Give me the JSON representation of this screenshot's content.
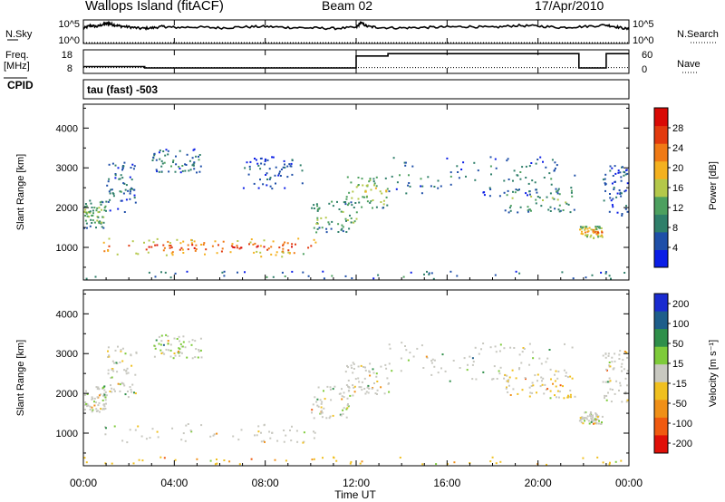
{
  "header": {
    "station": "Wallops Island (fitACF)",
    "beam": "Beam 02",
    "date": "17/Apr/2010",
    "mode": "tau (fast) -503"
  },
  "time_axis": {
    "label": "Time UT",
    "ticks": [
      "00:00",
      "04:00",
      "08:00",
      "12:00",
      "16:00",
      "20:00",
      "00:00"
    ],
    "range_hours": [
      0,
      24
    ]
  },
  "chart_data": [
    {
      "type": "line",
      "name": "noise",
      "left_label": "N.Sky",
      "right_label": "N.Search",
      "y_ticks": [
        "10^5",
        "10^0"
      ],
      "y_log_range": [
        0,
        5
      ],
      "series": [
        {
          "name": "N.Sky",
          "style": "solid",
          "x": [
            0,
            0.3,
            0.6,
            0.9,
            1.1,
            1.3,
            1.6,
            2.0,
            2.5,
            3.0,
            3.5,
            4.0,
            5.0,
            6.0,
            7.0,
            8.0,
            9.0,
            10.0,
            11.0,
            12.0,
            12.2,
            12.5,
            13.0,
            14.0,
            15.0,
            16.0,
            17.0,
            18.0,
            19.0,
            20.0,
            21.0,
            22.0,
            23.0,
            23.5,
            24.0
          ],
          "y": [
            3.2,
            3.8,
            3.6,
            4.1,
            4.3,
            4.0,
            3.7,
            3.5,
            3.2,
            3.3,
            3.6,
            3.4,
            3.5,
            3.3,
            3.5,
            3.6,
            3.4,
            3.3,
            3.2,
            3.4,
            4.4,
            3.6,
            3.4,
            3.3,
            3.4,
            3.5,
            3.6,
            3.4,
            3.8,
            3.7,
            3.4,
            3.6,
            3.9,
            3.5,
            3.0
          ]
        },
        {
          "name": "N.Search",
          "style": "dotted",
          "x": [
            0,
            24
          ],
          "y": [
            0.2,
            0.2
          ]
        }
      ]
    },
    {
      "type": "line",
      "name": "frequency",
      "left_label": "Freq.",
      "left_unit": "[MHz]",
      "left_ticks": [
        "18",
        "8"
      ],
      "left_range": [
        8,
        18
      ],
      "right_label": "Nave",
      "right_ticks": [
        "60",
        "0"
      ],
      "right_range": [
        0,
        60
      ],
      "series": [
        {
          "name": "Freq.",
          "style": "solid",
          "step": true,
          "x": [
            0,
            2.7,
            2.7,
            12.0,
            12.0,
            13.4,
            13.4,
            21.8,
            21.8,
            23.0,
            23.0,
            24.0
          ],
          "y": [
            10.5,
            10.5,
            9.8,
            9.8,
            15.8,
            15.8,
            17.0,
            17.0,
            9.8,
            9.8,
            17.0,
            17.0
          ]
        },
        {
          "name": "Nave",
          "style": "dotted",
          "x": [
            0,
            24
          ],
          "y": [
            12,
            12
          ]
        }
      ]
    },
    {
      "type": "heatmap",
      "name": "power",
      "ylabel": "Slant Range [km]",
      "y_ticks": [
        1000,
        2000,
        3000,
        4000
      ],
      "ylim": [
        180,
        4600
      ],
      "colorbar_label": "Power [dB]",
      "colorbar_ticks": [
        4,
        8,
        12,
        16,
        20,
        24,
        28
      ],
      "colorbar_range": [
        0,
        32
      ],
      "colors": [
        "#0a1de6",
        "#1f4fa8",
        "#2f7f6a",
        "#4da05f",
        "#b4c84a",
        "#f4b11f",
        "#f07a15",
        "#e23a0e",
        "#d90a05"
      ],
      "regions": [
        {
          "t": [
            0.8,
            10.2
          ],
          "r": [
            780,
            1260
          ],
          "level": 0.82
        },
        {
          "t": [
            2.2,
            9.6
          ],
          "r": [
            870,
            1180
          ],
          "level": 0.95
        },
        {
          "t": [
            0.0,
            1.0
          ],
          "r": [
            1500,
            2200
          ],
          "level": 0.45
        },
        {
          "t": [
            1.0,
            2.3
          ],
          "r": [
            1900,
            3200
          ],
          "level": 0.25
        },
        {
          "t": [
            3.0,
            5.2
          ],
          "r": [
            2900,
            3500
          ],
          "level": 0.3
        },
        {
          "t": [
            7.0,
            9.6
          ],
          "r": [
            2500,
            3300
          ],
          "level": 0.2
        },
        {
          "t": [
            10.0,
            12.0
          ],
          "r": [
            1400,
            2200
          ],
          "level": 0.45
        },
        {
          "t": [
            11.5,
            13.4
          ],
          "r": [
            2000,
            2800
          ],
          "level": 0.55
        },
        {
          "t": [
            13.4,
            21.6
          ],
          "r": [
            2300,
            3300
          ],
          "level": 0.28
        },
        {
          "t": [
            18.5,
            21.6
          ],
          "r": [
            1900,
            2500
          ],
          "level": 0.4
        },
        {
          "t": [
            21.8,
            22.8
          ],
          "r": [
            1250,
            1550
          ],
          "level": 0.7
        },
        {
          "t": [
            22.8,
            24.0
          ],
          "r": [
            1800,
            3100
          ],
          "level": 0.2
        },
        {
          "t": [
            0.0,
            24.0
          ],
          "r": [
            180,
            420
          ],
          "level": 0.3
        }
      ]
    },
    {
      "type": "heatmap",
      "name": "velocity",
      "ylabel": "Slant Range [km]",
      "y_ticks": [
        1000,
        2000,
        3000,
        4000
      ],
      "ylim": [
        180,
        4600
      ],
      "colorbar_label": "Velocity [m s⁻¹]",
      "colorbar_ticks": [
        200,
        100,
        50,
        15,
        -15,
        -50,
        -100,
        -200
      ],
      "colors": [
        "#1a2bd0",
        "#1e5e8a",
        "#2f8f4a",
        "#7ecb3a",
        "#c8c8c0",
        "#f0c020",
        "#f09018",
        "#f05a10",
        "#e01008"
      ],
      "regions": [
        {
          "t": [
            0.8,
            10.2
          ],
          "r": [
            780,
            1260
          ],
          "level": 0.5
        },
        {
          "t": [
            0.0,
            1.0
          ],
          "r": [
            1500,
            2200
          ],
          "level": 0.5
        },
        {
          "t": [
            1.0,
            2.3
          ],
          "r": [
            1900,
            3200
          ],
          "level": 0.5
        },
        {
          "t": [
            3.0,
            5.2
          ],
          "r": [
            2900,
            3500
          ],
          "level": 0.45
        },
        {
          "t": [
            10.0,
            12.0
          ],
          "r": [
            1400,
            2200
          ],
          "level": 0.5
        },
        {
          "t": [
            11.5,
            13.4
          ],
          "r": [
            2000,
            2800
          ],
          "level": 0.5
        },
        {
          "t": [
            13.4,
            21.6
          ],
          "r": [
            2300,
            3300
          ],
          "level": 0.5
        },
        {
          "t": [
            18.5,
            21.6
          ],
          "r": [
            1900,
            2500
          ],
          "level": 0.55
        },
        {
          "t": [
            21.8,
            22.8
          ],
          "r": [
            1250,
            1550
          ],
          "level": 0.5
        },
        {
          "t": [
            22.8,
            24.0
          ],
          "r": [
            1800,
            3100
          ],
          "level": 0.5
        },
        {
          "t": [
            0.0,
            24.0
          ],
          "r": [
            180,
            420
          ],
          "level": 0.62
        }
      ]
    }
  ],
  "labels": {
    "cpid": "CPID"
  }
}
